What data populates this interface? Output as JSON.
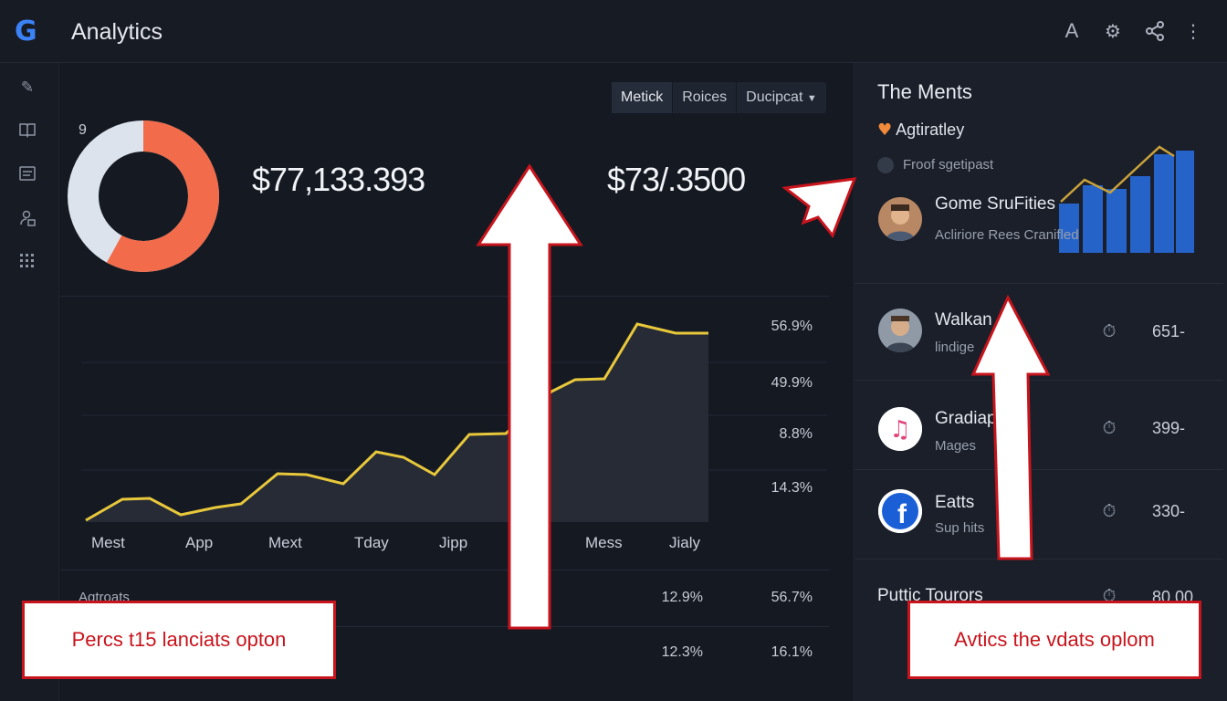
{
  "header": {
    "logo_text": "G",
    "title": "Analytics",
    "icons": [
      "font-icon",
      "gear-icon",
      "share-icon",
      "more-vertical-icon"
    ]
  },
  "sidebar": {
    "icons": [
      "pen-icon",
      "book-icon",
      "image-icon",
      "user-lock-icon",
      "grid-icon"
    ]
  },
  "segmented": {
    "options": [
      "Metick",
      "Roices",
      "Ducipcat"
    ],
    "active_index": 0
  },
  "summary": {
    "donut_label": "9",
    "donut_fraction_orange": 0.58,
    "value_1": "$77,133.393",
    "value_2": "$73/.3500"
  },
  "percent_labels": [
    "56.9%",
    "49.9%",
    "8.8%",
    "14.3%"
  ],
  "x_labels": [
    "Mest",
    "App",
    "Mext",
    "Tday",
    "Jipp",
    "Mess",
    "Jialy"
  ],
  "table": {
    "row_label": "Agtroats",
    "row1": [
      "12.9%",
      "56.7%"
    ],
    "row2": [
      "12.3%",
      "16.1%"
    ]
  },
  "right_panel": {
    "title": "The Ments",
    "legend_1": "Agtiratley",
    "legend_2": "Froof sgetipast",
    "featured": {
      "title": "Gome SruFities",
      "subtitle": "Acliriore Rees Cranifled"
    },
    "items": [
      {
        "title": "Walkan",
        "subtitle": "lindige",
        "value": "651-"
      },
      {
        "title": "Gradiap",
        "subtitle": "Mages",
        "value": "399-"
      },
      {
        "title": "Eatts",
        "subtitle": "Sup hits",
        "value": "330-"
      },
      {
        "title": "Puttic Tourors",
        "subtitle": "",
        "value": "80.00"
      }
    ]
  },
  "callouts": {
    "left": "Percs t15 lanciats opton",
    "right": "Avtics the vdats oplom"
  },
  "colors": {
    "accent_blue": "#3b82f6",
    "donut_orange": "#f26b4a",
    "donut_light": "#dde3ec",
    "line_yellow": "#e8c83b",
    "callout_red": "#c8141c"
  }
}
